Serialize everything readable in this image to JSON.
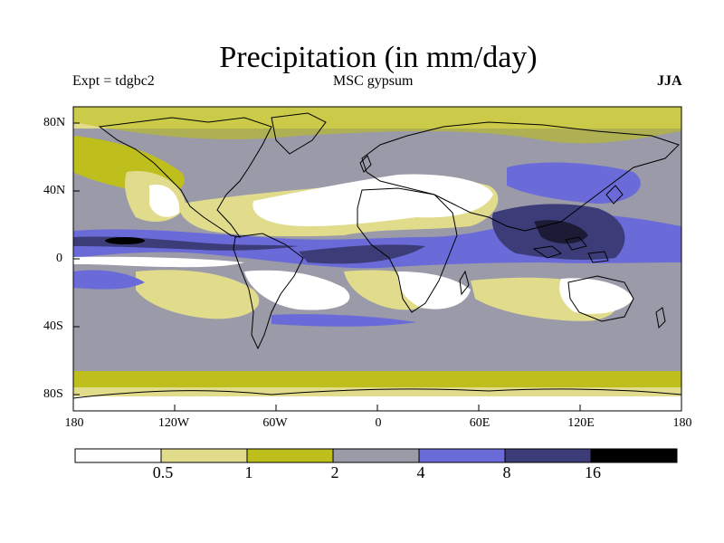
{
  "title": "Precipitation (in mm/day)",
  "subtitle_left": "Expt = tdgbc2",
  "subtitle_center": "MSC gypsum",
  "subtitle_right": "JJA",
  "lat_labels": [
    "80N",
    "40N",
    "0",
    "40S",
    "80S"
  ],
  "lon_labels": [
    "180",
    "120W",
    "60W",
    "0",
    "60E",
    "120E",
    "180"
  ],
  "colorbar": {
    "thresholds": [
      "0.5",
      "1",
      "2",
      "4",
      "8",
      "16"
    ],
    "colors": [
      "#ffffff",
      "#e0dc8c",
      "#bebe1c",
      "#9a9aa8",
      "#6a6ad8",
      "#3c3c78",
      "#000000"
    ]
  },
  "colors": {
    "land_outline": "#000000",
    "frame": "#000000"
  }
}
